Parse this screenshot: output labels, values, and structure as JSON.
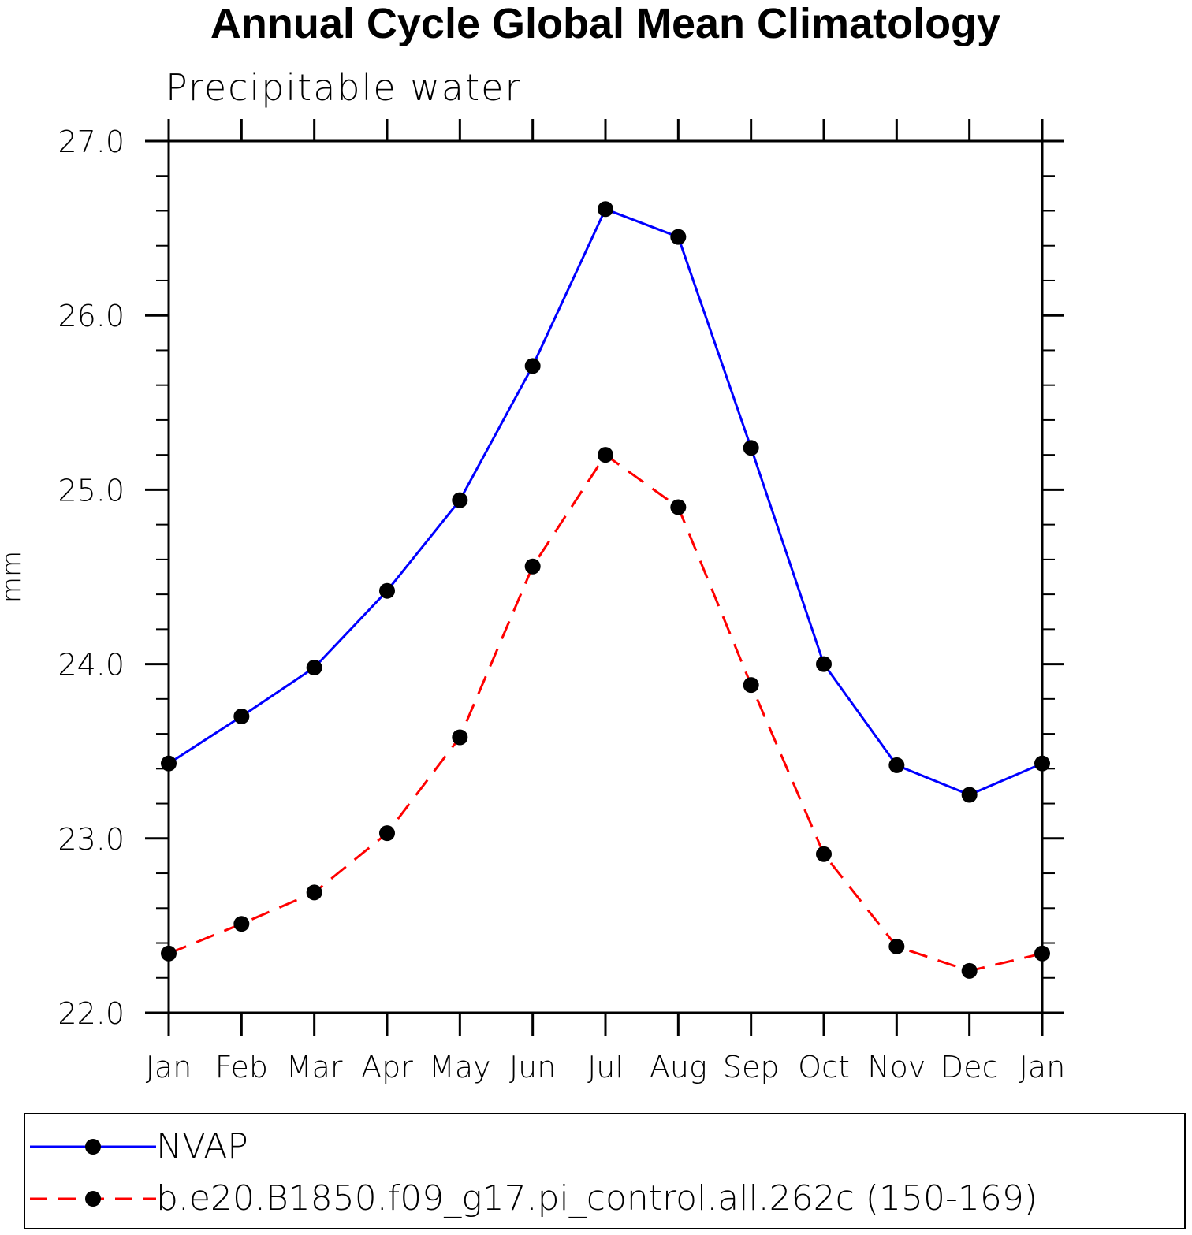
{
  "chart_data": {
    "type": "line",
    "title": "Annual Cycle Global Mean Climatology",
    "subtitle": "Precipitable water",
    "xlabel": "",
    "ylabel": "mm",
    "categories": [
      "Jan",
      "Feb",
      "Mar",
      "Apr",
      "May",
      "Jun",
      "Jul",
      "Aug",
      "Sep",
      "Oct",
      "Nov",
      "Dec",
      "Jan"
    ],
    "ylim": [
      22.0,
      27.0
    ],
    "yticks": [
      "22.0",
      "23.0",
      "24.0",
      "25.0",
      "26.0",
      "27.0"
    ],
    "series": [
      {
        "name": "NVAP",
        "color": "#0000ff",
        "dash": "solid",
        "values": [
          23.43,
          23.7,
          23.98,
          24.42,
          24.94,
          25.71,
          26.61,
          26.45,
          25.24,
          24.0,
          23.42,
          23.25,
          23.43
        ]
      },
      {
        "name": "b.e20.B1850.f09_g17.pi_control.all.262c (150-169)",
        "color": "#ff0000",
        "dash": "dashed",
        "values": [
          22.34,
          22.51,
          22.69,
          23.03,
          23.58,
          24.56,
          25.2,
          24.9,
          23.88,
          22.91,
          22.38,
          22.24,
          22.34
        ]
      }
    ],
    "legend_position": "bottom"
  }
}
